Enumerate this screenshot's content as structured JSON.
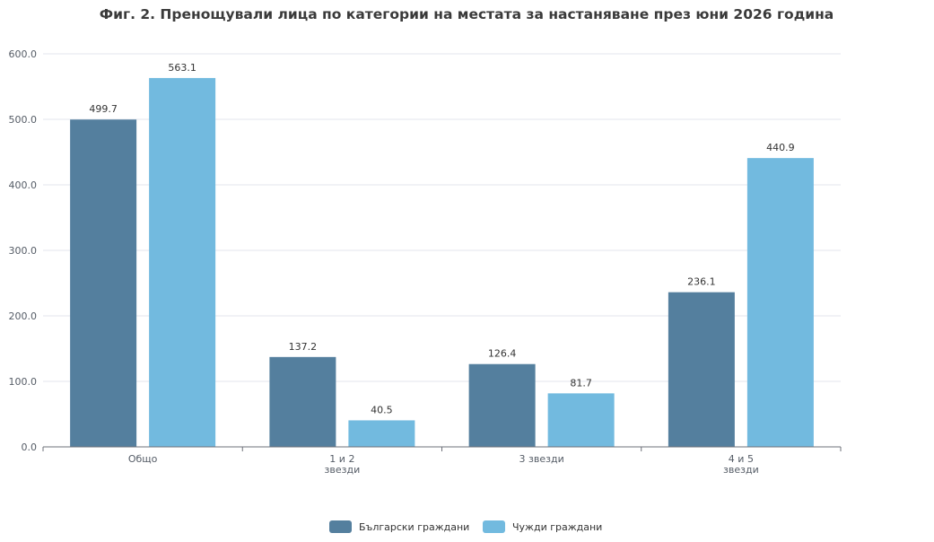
{
  "chart_data": {
    "type": "bar",
    "title": "Фиг. 2. Пренощували лица по категории на местата за настаняване през юни 2026 година",
    "xlabel": "",
    "ylabel": "",
    "categories": [
      [
        "Общо"
      ],
      [
        "1 и 2",
        "звезди"
      ],
      [
        "3 звезди"
      ],
      [
        "4 и 5",
        "звезди"
      ]
    ],
    "series": [
      {
        "name": "Български граждани",
        "color": "#547f9e",
        "values": [
          499.7,
          137.2,
          126.4,
          236.1
        ],
        "labels": [
          "499.7",
          "137.2",
          "126.4",
          "236.1"
        ]
      },
      {
        "name": "Чужди граждани",
        "color": "#72badf",
        "values": [
          563.1,
          40.5,
          81.7,
          440.9
        ],
        "labels": [
          "563.1",
          "40.5",
          "81.7",
          "440.9"
        ]
      }
    ],
    "ylim": [
      0,
      600
    ],
    "yticks": [
      "0.0",
      "100.0",
      "200.0",
      "300.0",
      "400.0",
      "500.0",
      "600.0"
    ],
    "grid": true,
    "legend_position": "bottom"
  }
}
